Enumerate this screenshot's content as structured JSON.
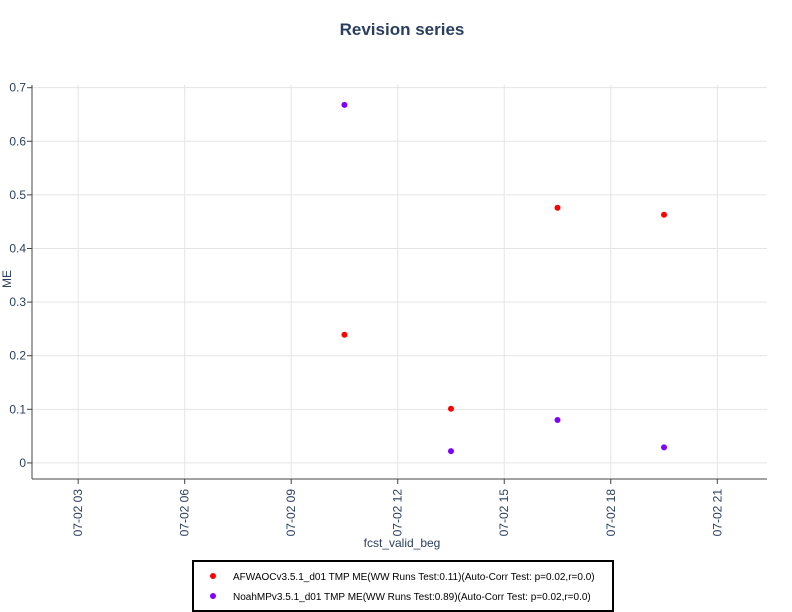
{
  "chart_data": {
    "type": "scatter",
    "title": "Revision series",
    "xlabel": "fcst_valid_beg",
    "ylabel": "ME",
    "x_ticks": [
      {
        "hour": 3,
        "label": "07-02 03"
      },
      {
        "hour": 6,
        "label": "07-02 06"
      },
      {
        "hour": 9,
        "label": "07-02 09"
      },
      {
        "hour": 12,
        "label": "07-02 12"
      },
      {
        "hour": 15,
        "label": "07-02 15"
      },
      {
        "hour": 18,
        "label": "07-02 18"
      },
      {
        "hour": 21,
        "label": "07-02 21"
      }
    ],
    "xlim": [
      1.7,
      22.4
    ],
    "y_ticks": [
      {
        "value": 0,
        "label": "0"
      },
      {
        "value": 0.1,
        "label": "0.1"
      },
      {
        "value": 0.2,
        "label": "0.2"
      },
      {
        "value": 0.3,
        "label": "0.3"
      },
      {
        "value": 0.4,
        "label": "0.4"
      },
      {
        "value": 0.5,
        "label": "0.5"
      },
      {
        "value": 0.6,
        "label": "0.6"
      },
      {
        "value": 0.7,
        "label": "0.7"
      }
    ],
    "ylim": [
      -0.03,
      0.705
    ],
    "grid": true,
    "legend_position": "bottom",
    "series": [
      {
        "name": "AFWAOCv3.5.1_d01 TMP ME(WW Runs Test:0.11)(Auto-Corr Test: p=0.02,r=0.0)",
        "color": "#ff0000",
        "points": [
          {
            "x": "07-02 10:30",
            "hour": 10.5,
            "y": 0.239
          },
          {
            "x": "07-02 13:30",
            "hour": 13.5,
            "y": 0.101
          },
          {
            "x": "07-02 16:30",
            "hour": 16.5,
            "y": 0.476
          },
          {
            "x": "07-02 19:30",
            "hour": 19.5,
            "y": 0.463
          }
        ]
      },
      {
        "name": "NoahMPv3.5.1_d01 TMP ME(WW Runs Test:0.89)(Auto-Corr Test: p=0.02,r=0.0)",
        "color": "#8000ff",
        "points": [
          {
            "x": "07-02 10:30",
            "hour": 10.5,
            "y": 0.668
          },
          {
            "x": "07-02 13:30",
            "hour": 13.5,
            "y": 0.022
          },
          {
            "x": "07-02 16:30",
            "hour": 16.5,
            "y": 0.08
          },
          {
            "x": "07-02 19:30",
            "hour": 19.5,
            "y": 0.029
          }
        ]
      }
    ]
  }
}
